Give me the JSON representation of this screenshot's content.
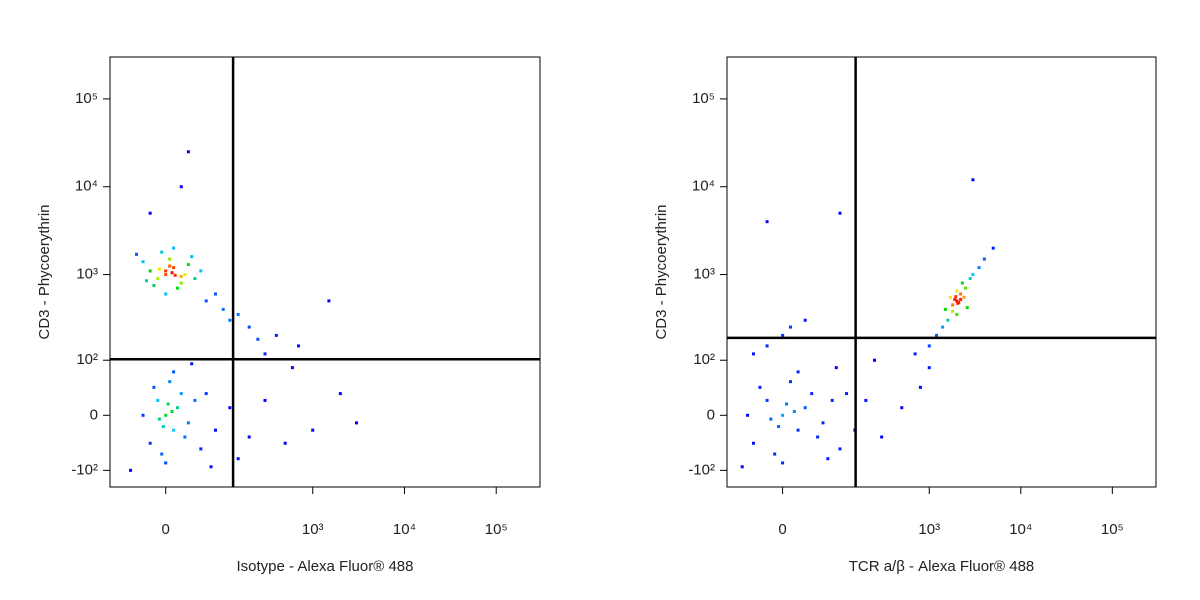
{
  "chart_data": [
    {
      "type": "scatter",
      "x_label": "Isotype - Alexa Fluor® 488",
      "y_label": "CD3 - Phycoerythrin",
      "xscale": "biexponential",
      "yscale": "biexponential",
      "xlim": [
        -95,
        300000
      ],
      "ylim": [
        -160,
        300000
      ],
      "xticks": [
        0,
        {
          "value": 1000,
          "label": "10³"
        },
        {
          "value": 10000,
          "label": "10⁴"
        },
        {
          "value": 100000,
          "label": "10⁵"
        }
      ],
      "yticks": [
        {
          "value": -100,
          "label": "-10²"
        },
        0,
        {
          "value": 100,
          "label": "10²"
        },
        {
          "value": 1000,
          "label": "10³"
        },
        {
          "value": 10000,
          "label": "10⁴"
        },
        {
          "value": 100000,
          "label": "10⁵"
        }
      ],
      "gate_x": 131,
      "gate_y": 103,
      "x": [
        0,
        10,
        -10,
        20,
        5,
        -20,
        30,
        15,
        -5,
        25,
        40,
        -30,
        0,
        10,
        -15,
        35,
        50,
        -25,
        5,
        20,
        0,
        8,
        -8,
        12,
        60,
        -40,
        80,
        100,
        150,
        200,
        120,
        250,
        0,
        10,
        -10,
        20,
        -20,
        5,
        30,
        -5,
        15,
        40,
        -30,
        0,
        10,
        25,
        -15,
        50,
        8,
        -8,
        3,
        -3,
        60,
        80,
        120,
        200,
        300,
        500,
        150,
        -50,
        70,
        35,
        1000,
        2000,
        3000,
        1500,
        400,
        700,
        300,
        600,
        30,
        20,
        -20
      ],
      "values": [
        1000,
        1200,
        900,
        800,
        1500,
        1100,
        1300,
        700,
        1800,
        1000,
        900,
        1400,
        600,
        2000,
        750,
        1600,
        1100,
        850,
        1250,
        950,
        1100,
        1050,
        1150,
        980,
        500,
        1700,
        600,
        400,
        350,
        250,
        300,
        180,
        0,
        -20,
        20,
        30,
        -40,
        50,
        -10,
        -60,
        10,
        20,
        0,
        -80,
        70,
        -30,
        40,
        -50,
        5,
        -5,
        15,
        -15,
        30,
        -20,
        10,
        -30,
        20,
        -40,
        -70,
        -100,
        -90,
        90,
        -20,
        30,
        -10,
        500,
        200,
        150,
        120,
        80,
        25000,
        10000,
        5000
      ]
    },
    {
      "type": "scatter",
      "x_label": "TCR a/β - Alexa Fluor® 488",
      "y_label": "CD3 - Phycoerythrin",
      "xscale": "biexponential",
      "yscale": "biexponential",
      "xlim": [
        -95,
        300000
      ],
      "ylim": [
        -160,
        300000
      ],
      "xticks": [
        0,
        {
          "value": 1000,
          "label": "10³"
        },
        {
          "value": 10000,
          "label": "10⁴"
        },
        {
          "value": 100000,
          "label": "10⁵"
        }
      ],
      "yticks": [
        {
          "value": -100,
          "label": "-10²"
        },
        0,
        {
          "value": 100,
          "label": "10²"
        },
        {
          "value": 1000,
          "label": "10³"
        },
        {
          "value": 10000,
          "label": "10⁴"
        },
        {
          "value": 100000,
          "label": "10⁵"
        }
      ],
      "gate_x": 153,
      "gate_y": 187,
      "x": [
        0,
        20,
        -20,
        40,
        -40,
        10,
        60,
        -10,
        30,
        80,
        -50,
        0,
        20,
        50,
        -30,
        100,
        15,
        -15,
        5,
        -5,
        120,
        150,
        -60,
        90,
        70,
        200,
        300,
        500,
        800,
        250,
        -20,
        0,
        -40,
        30,
        10,
        2000,
        1800,
        2200,
        1500,
        2500,
        2000,
        1700,
        2300,
        1600,
        2800,
        2100,
        1900,
        2000,
        1400,
        3000,
        2400,
        1200,
        3500,
        1000,
        2600,
        1800,
        2200,
        2050,
        1950,
        3000,
        5000,
        4000,
        700,
        1000,
        -20,
        100
      ],
      "values": [
        0,
        -20,
        20,
        30,
        -40,
        50,
        -10,
        -60,
        10,
        20,
        0,
        -80,
        70,
        -30,
        40,
        -50,
        5,
        -5,
        15,
        -15,
        30,
        -20,
        -90,
        80,
        -70,
        20,
        -30,
        10,
        40,
        100,
        150,
        200,
        120,
        300,
        250,
        500,
        450,
        600,
        400,
        700,
        350,
        550,
        800,
        300,
        900,
        480,
        520,
        650,
        250,
        1000,
        550,
        200,
        1200,
        150,
        420,
        380,
        520,
        470,
        560,
        12000,
        2000,
        1500,
        120,
        80,
        4000,
        5000
      ]
    }
  ]
}
